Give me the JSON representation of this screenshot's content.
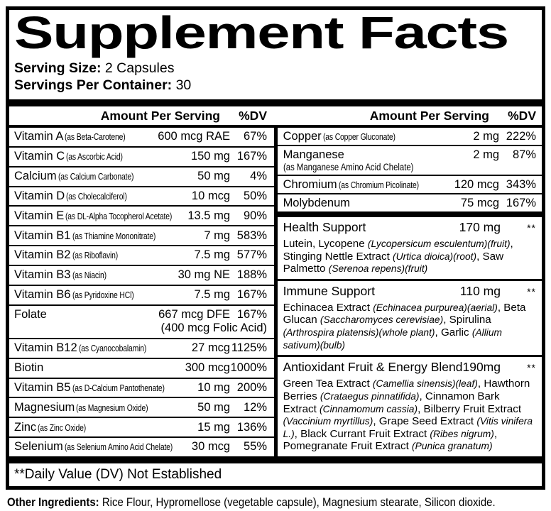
{
  "colors": {
    "ink": "#000000",
    "paper": "#ffffff"
  },
  "label": {
    "title": "Supplement Facts",
    "serving_size_label": "Serving Size:",
    "serving_size_value": "2 Capsules",
    "servings_label": "Servings Per Container:",
    "servings_value": "30",
    "col_header_amount": "Amount Per Serving",
    "col_header_dv": "%DV",
    "footnote": "**Daily Value (DV) Not Established",
    "other_ingredients_label": "Other Ingredients:",
    "other_ingredients_value": "Rice Flour, Hypromellose (vegetable capsule), Magnesium stearate, Silicon dioxide."
  },
  "left_rows": [
    {
      "name": "Vitamin A",
      "detail": "(as Beta-Carotene)",
      "amount": "600 mcg RAE",
      "dv": "67%"
    },
    {
      "name": "Vitamin C",
      "detail": "(as Ascorbic Acid)",
      "amount": "150 mg",
      "dv": "167%"
    },
    {
      "name": "Calcium",
      "detail": "(as Calcium Carbonate)",
      "amount": "50 mg",
      "dv": "4%"
    },
    {
      "name": "Vitamin D",
      "detail": "(as Cholecalciferol)",
      "amount": "10 mcg",
      "dv": "50%"
    },
    {
      "name": "Vitamin E",
      "detail": "(as DL-Alpha Tocopherol Acetate)",
      "amount": "13.5 mg",
      "dv": "90%"
    },
    {
      "name": "Vitamin B1",
      "detail": "(as Thiamine Mononitrate)",
      "amount": "7 mg",
      "dv": "583%"
    },
    {
      "name": "Vitamin B2",
      "detail": "(as Riboflavin)",
      "amount": "7.5 mg",
      "dv": "577%"
    },
    {
      "name": "Vitamin B3",
      "detail": "(as Niacin)",
      "amount": "30 mg NE",
      "dv": "188%"
    },
    {
      "name": "Vitamin B6",
      "detail": "(as Pyridoxine HCl)",
      "amount": "7.5 mg",
      "dv": "167%"
    },
    {
      "name": "Folate",
      "detail": "",
      "amount": "667 mcg DFE",
      "dv": "167%",
      "amount2": "(400 mcg Folic Acid)"
    },
    {
      "name": "Vitamin B12",
      "detail": "(as Cyanocobalamin)",
      "amount": "27 mcg",
      "dv": "1125%"
    },
    {
      "name": "Biotin",
      "detail": "",
      "amount": "300 mcg",
      "dv": "1000%"
    },
    {
      "name": "Vitamin B5",
      "detail": "(as D-Calcium Pantothenate)",
      "amount": "10 mg",
      "dv": "200%"
    },
    {
      "name": "Magnesium",
      "detail": "(as Magnesium Oxide)",
      "amount": "50 mg",
      "dv": "12%"
    },
    {
      "name": "Zinc",
      "detail": "(as Zinc Oxide)",
      "amount": "15 mg",
      "dv": "136%"
    },
    {
      "name": "Selenium",
      "detail": "(as Selenium Amino Acid Chelate)",
      "amount": "30 mcg",
      "dv": "55%"
    }
  ],
  "right_rows": [
    {
      "name": "Copper",
      "detail": "(as Copper Gluconate)",
      "amount": "2 mg",
      "dv": "222%"
    },
    {
      "name": "Manganese",
      "detail": "(as Manganese Amino Acid Chelate)",
      "amount": "2 mg",
      "dv": "87%"
    },
    {
      "name": "Chromium",
      "detail": "(as Chromium Picolinate)",
      "amount": "120 mcg",
      "dv": "343%"
    },
    {
      "name": "Molybdenum",
      "detail": "",
      "amount": "75 mcg",
      "dv": "167%"
    }
  ],
  "blends": [
    {
      "name": "Health Support",
      "amount": "170 mg",
      "dv": "**",
      "desc": [
        {
          "t": "Lutein, Lycopene ",
          "i": false
        },
        {
          "t": "(Lycopersicum esculentum)(fruit)",
          "i": true
        },
        {
          "t": ", Stinging Nettle Extract ",
          "i": false
        },
        {
          "t": "(Urtica dioica)(root)",
          "i": true
        },
        {
          "t": ", Saw Palmetto ",
          "i": false
        },
        {
          "t": "(Serenoa repens)(fruit)",
          "i": true
        }
      ]
    },
    {
      "name": "Immune Support",
      "amount": "110 mg",
      "dv": "**",
      "desc": [
        {
          "t": "Echinacea Extract ",
          "i": false
        },
        {
          "t": "(Echinacea purpurea)(aerial)",
          "i": true
        },
        {
          "t": ", Beta Glucan ",
          "i": false
        },
        {
          "t": "(Saccharomyces cerevisiae)",
          "i": true
        },
        {
          "t": ", Spirulina ",
          "i": false
        },
        {
          "t": "(Arthrospira platensis)(whole plant)",
          "i": true
        },
        {
          "t": ", Garlic ",
          "i": false
        },
        {
          "t": "(Allium sativum)(bulb)",
          "i": true
        }
      ]
    },
    {
      "name": "Antioxidant Fruit & Energy Blend",
      "amount": "190mg",
      "dv": "**",
      "desc": [
        {
          "t": "Green Tea Extract ",
          "i": false
        },
        {
          "t": "(Camellia sinensis)(leaf)",
          "i": true
        },
        {
          "t": ", Hawthorn Berries ",
          "i": false
        },
        {
          "t": "(Crataegus pinnatifida)",
          "i": true
        },
        {
          "t": ", Cinnamon Bark Extract ",
          "i": false
        },
        {
          "t": "(Cinnamomum cassia)",
          "i": true
        },
        {
          "t": ", Bilberry Fruit Extract ",
          "i": false
        },
        {
          "t": "(Vaccinium myrtillus)",
          "i": true
        },
        {
          "t": ", Grape Seed Extract ",
          "i": false
        },
        {
          "t": "(Vitis vinifera L.)",
          "i": true
        },
        {
          "t": ", Black Currant Fruit Extract ",
          "i": false
        },
        {
          "t": "(Ribes nigrum)",
          "i": true
        },
        {
          "t": ", Pomegranate Fruit Extract ",
          "i": false
        },
        {
          "t": "(Punica granatum)",
          "i": true
        }
      ]
    }
  ]
}
